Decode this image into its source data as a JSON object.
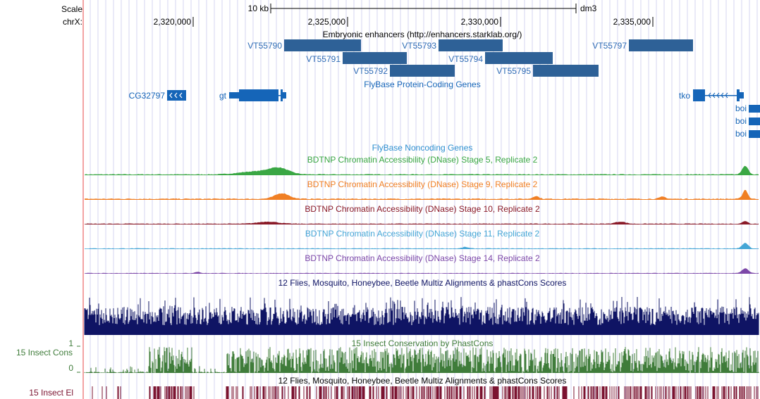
{
  "colors": {
    "feature": "#2e6197",
    "gene": "#1565b8",
    "link": "#2e6bb5",
    "stage5": "#3aa744",
    "stage9": "#f07f24",
    "stage10": "#8a1a28",
    "stage11": "#45a6d6",
    "stage14": "#7c47a8",
    "multiz": "#0f1464",
    "phastcons": "#3f7c3a",
    "elements": "#7b1330",
    "gutter": "#f3a3a3",
    "grid": "#d6d6f0"
  },
  "ruler": {
    "scale_label": "Scale",
    "chrom_label": "chrX:",
    "scale_bar_label": "10 kb",
    "assembly": "dm3",
    "ticks": [
      "2,320,000",
      "2,325,000",
      "2,330,000",
      "2,335,000"
    ]
  },
  "tracks": {
    "enhancers": {
      "title": "Embryonic enhancers (http://enhancers.starklab.org/)",
      "items": [
        "VT55790",
        "VT55791",
        "VT55792",
        "VT55793",
        "VT55794",
        "VT55795",
        "VT55797"
      ]
    },
    "protein_genes": {
      "title": "FlyBase Protein-Coding Genes",
      "genes": [
        "CG32797",
        "gt",
        "tko",
        "boi",
        "boi",
        "boi"
      ]
    },
    "noncoding": {
      "title": "FlyBase Noncoding Genes"
    },
    "dnase": [
      "BDTNP Chromatin Accessibility (DNase) Stage 5, Replicate 2",
      "BDTNP Chromatin Accessibility (DNase) Stage 9, Replicate 2",
      "BDTNP Chromatin Accessibility (DNase) Stage 10, Replicate 2",
      "BDTNP Chromatin Accessibility (DNase) Stage 11, Replicate 2",
      "BDTNP Chromatin Accessibility (DNase) Stage 14, Replicate 2"
    ],
    "multiz": {
      "title": "12 Flies, Mosquito, Honeybee, Beetle Multiz Alignments & phastCons Scores"
    },
    "phastcons": {
      "title": "15 Insect Conservation by PhastCons",
      "side_label": "15 Insect Cons",
      "y_max": "1",
      "y_min": "0"
    },
    "elements": {
      "title": "12 Flies, Mosquito, Honeybee, Beetle Multiz Alignments & phastCons Scores",
      "side_label": "15 Insect El"
    }
  }
}
